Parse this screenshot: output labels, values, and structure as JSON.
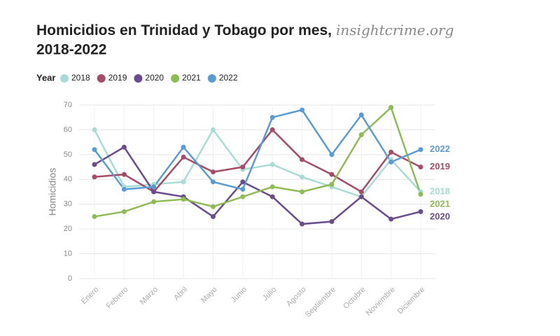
{
  "chart_data": {
    "type": "line",
    "title": "Homicidios en Trinidad y Tobago por mes,",
    "source": "insightcrime.org",
    "title_line2": "2018-2022",
    "legend_title": "Year",
    "y_label": "Homicidios",
    "categories": [
      "Enero",
      "Febrero",
      "Marzo",
      "Abril",
      "Mayo",
      "Junio",
      "Julio",
      "Agosto",
      "Septiembre",
      "Octubre",
      "Noviembre",
      "Diciembre"
    ],
    "series": [
      {
        "name": "2018",
        "color": "#a8dcd4",
        "values": [
          60,
          37,
          38,
          39,
          60,
          44,
          46,
          41,
          37,
          33,
          48,
          35
        ]
      },
      {
        "name": "2019",
        "color": "#a54d67",
        "values": [
          41,
          42,
          35,
          49,
          43,
          45,
          60,
          48,
          42,
          35,
          51,
          45
        ]
      },
      {
        "name": "2020",
        "color": "#6a4c8c",
        "values": [
          46,
          53,
          35,
          33,
          25,
          39,
          33,
          22,
          23,
          33,
          24,
          27
        ]
      },
      {
        "name": "2021",
        "color": "#8fbb56",
        "values": [
          25,
          27,
          31,
          32,
          29,
          33,
          37,
          35,
          38,
          58,
          69,
          34
        ]
      },
      {
        "name": "2022",
        "color": "#5b9bd5",
        "values": [
          52,
          36,
          37,
          53,
          39,
          36,
          65,
          68,
          50,
          66,
          47,
          52
        ]
      }
    ],
    "ylim": [
      0,
      70
    ],
    "yticks": [
      0,
      10,
      20,
      30,
      40,
      50,
      60,
      70
    ],
    "grid": true
  }
}
